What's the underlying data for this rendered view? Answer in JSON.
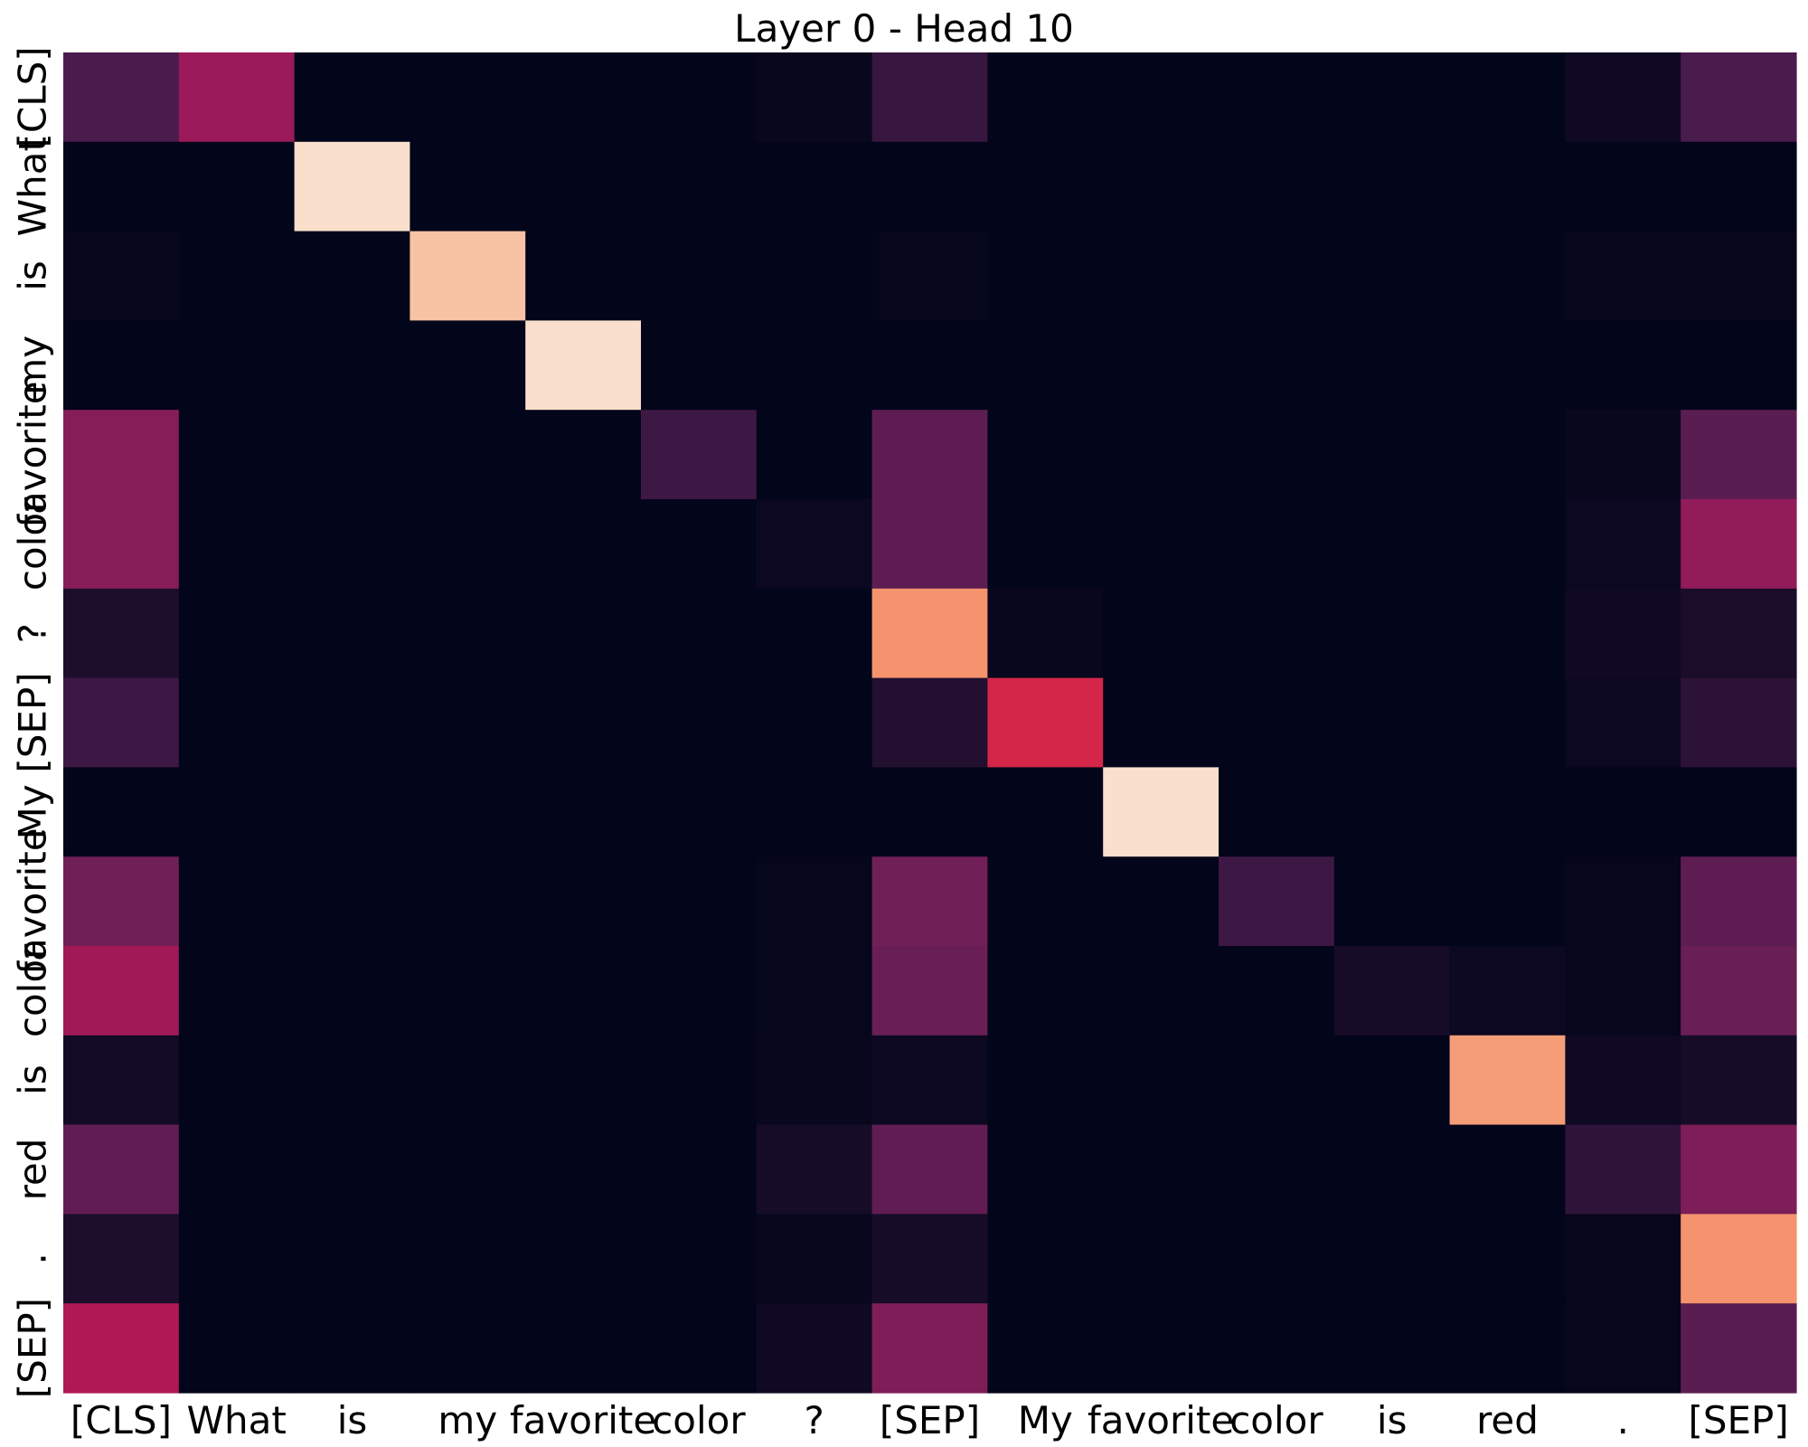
{
  "chart_data": {
    "type": "heatmap",
    "title": "Layer 0 - Head 10",
    "xlabel": "",
    "ylabel": "",
    "colormap": "rocket",
    "value_range": [
      0,
      1
    ],
    "grid": false,
    "x_labels": [
      "[CLS]",
      "What",
      "is",
      "my",
      "favorite",
      "color",
      "?",
      "[SEP]",
      "My",
      "favorite",
      "color",
      "is",
      "red",
      ".",
      "[SEP]"
    ],
    "y_labels": [
      "[CLS]",
      "What",
      "is",
      "my",
      "favorite",
      "color",
      "?",
      "[SEP]",
      "My",
      "favorite",
      "color",
      "is",
      "red",
      ".",
      "[SEP]"
    ],
    "values": [
      [
        0.2,
        0.4,
        0.0,
        0.0,
        0.0,
        0.0,
        0.02,
        0.15,
        0.0,
        0.0,
        0.0,
        0.0,
        0.0,
        0.04,
        0.2
      ],
      [
        0.0,
        0.0,
        0.97,
        0.0,
        0.0,
        0.0,
        0.0,
        0.0,
        0.0,
        0.0,
        0.0,
        0.0,
        0.0,
        0.0,
        0.0
      ],
      [
        0.01,
        0.0,
        0.0,
        0.9,
        0.0,
        0.0,
        0.0,
        0.01,
        0.0,
        0.0,
        0.0,
        0.0,
        0.0,
        0.01,
        0.01
      ],
      [
        0.0,
        0.0,
        0.0,
        0.0,
        0.97,
        0.0,
        0.0,
        0.0,
        0.0,
        0.0,
        0.0,
        0.0,
        0.0,
        0.0,
        0.0
      ],
      [
        0.35,
        0.0,
        0.0,
        0.0,
        0.0,
        0.17,
        0.0,
        0.25,
        0.0,
        0.0,
        0.0,
        0.0,
        0.0,
        0.02,
        0.24
      ],
      [
        0.35,
        0.0,
        0.0,
        0.0,
        0.0,
        0.0,
        0.03,
        0.25,
        0.0,
        0.0,
        0.0,
        0.0,
        0.0,
        0.03,
        0.38
      ],
      [
        0.08,
        0.0,
        0.0,
        0.0,
        0.0,
        0.0,
        0.0,
        0.8,
        0.02,
        0.0,
        0.0,
        0.0,
        0.0,
        0.04,
        0.07
      ],
      [
        0.17,
        0.0,
        0.0,
        0.0,
        0.0,
        0.0,
        0.0,
        0.1,
        0.55,
        0.0,
        0.0,
        0.0,
        0.0,
        0.03,
        0.12
      ],
      [
        0.0,
        0.0,
        0.0,
        0.0,
        0.0,
        0.0,
        0.0,
        0.0,
        0.0,
        0.97,
        0.0,
        0.0,
        0.0,
        0.0,
        0.0
      ],
      [
        0.3,
        0.0,
        0.0,
        0.0,
        0.0,
        0.0,
        0.01,
        0.3,
        0.0,
        0.0,
        0.17,
        0.0,
        0.0,
        0.01,
        0.25
      ],
      [
        0.42,
        0.0,
        0.0,
        0.0,
        0.0,
        0.0,
        0.01,
        0.28,
        0.0,
        0.0,
        0.0,
        0.06,
        0.03,
        0.01,
        0.28
      ],
      [
        0.05,
        0.0,
        0.0,
        0.0,
        0.0,
        0.0,
        0.02,
        0.03,
        0.0,
        0.0,
        0.0,
        0.0,
        0.82,
        0.04,
        0.06
      ],
      [
        0.26,
        0.0,
        0.0,
        0.0,
        0.0,
        0.0,
        0.06,
        0.26,
        0.0,
        0.0,
        0.0,
        0.0,
        0.0,
        0.13,
        0.33
      ],
      [
        0.08,
        0.0,
        0.0,
        0.0,
        0.0,
        0.0,
        0.02,
        0.06,
        0.0,
        0.0,
        0.0,
        0.0,
        0.0,
        0.01,
        0.8
      ],
      [
        0.45,
        0.0,
        0.0,
        0.0,
        0.0,
        0.0,
        0.04,
        0.33,
        0.0,
        0.0,
        0.0,
        0.0,
        0.0,
        0.01,
        0.24
      ]
    ]
  }
}
